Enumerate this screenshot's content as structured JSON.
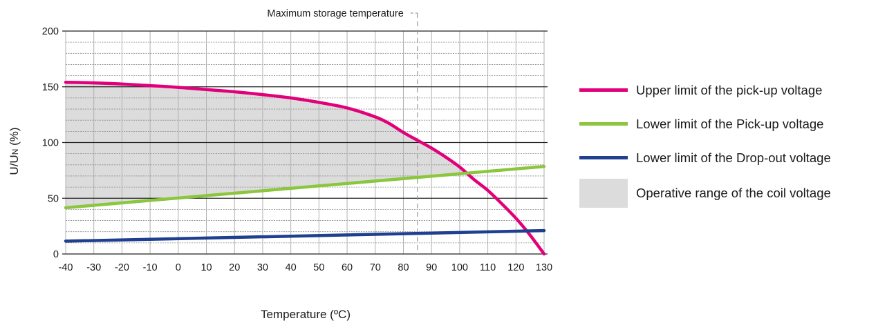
{
  "chart_data": {
    "type": "line",
    "xlabel": "Temperature (ºC)",
    "ylabel_main": "U/U",
    "ylabel_sub": "N",
    "ylabel_tail": " (%)",
    "xlim": [
      -40,
      130
    ],
    "ylim": [
      0,
      200
    ],
    "x_ticks": [
      -40,
      -30,
      -20,
      -10,
      0,
      10,
      20,
      30,
      40,
      50,
      60,
      70,
      80,
      90,
      100,
      110,
      120,
      130
    ],
    "x_tick_labels": [
      "-40",
      "-30",
      "-20",
      "-10",
      "0",
      "10",
      "20",
      "30",
      "40",
      "50",
      "60",
      "70",
      "80",
      "90",
      "100",
      "110",
      "120",
      "130"
    ],
    "y_ticks": [
      0,
      50,
      100,
      150,
      200
    ],
    "y_tick_labels": [
      "0",
      "50",
      "100",
      "150",
      "200"
    ],
    "grid": true,
    "annotation": {
      "text": "Maximum storage temperature",
      "x": 85
    },
    "series": [
      {
        "name": "Upper limit of the pick-up voltage",
        "color": "#e2007a",
        "x": [
          -40,
          -30,
          -20,
          -10,
          0,
          10,
          20,
          30,
          40,
          50,
          60,
          70,
          75,
          80,
          85,
          90,
          95,
          100,
          105,
          110,
          115,
          120,
          125,
          130
        ],
        "y": [
          154,
          153.5,
          152.5,
          151,
          149.5,
          147.5,
          145.5,
          143,
          140,
          136,
          131,
          123,
          117,
          109,
          102,
          95,
          87,
          78,
          67,
          57,
          45,
          32,
          17,
          0
        ]
      },
      {
        "name": "Lower limit of the Pick-up voltage",
        "color": "#8cc63f",
        "x": [
          -40,
          130
        ],
        "y": [
          41.5,
          78.5
        ]
      },
      {
        "name": "Lower limit of the Drop-out voltage",
        "color": "#1f3f8f",
        "x": [
          -40,
          130
        ],
        "y": [
          11.5,
          21
        ]
      }
    ],
    "area": {
      "name": "Operative range of the coil voltage",
      "color": "#dcdcdc",
      "x_min": -40,
      "x_max": 103
    }
  }
}
